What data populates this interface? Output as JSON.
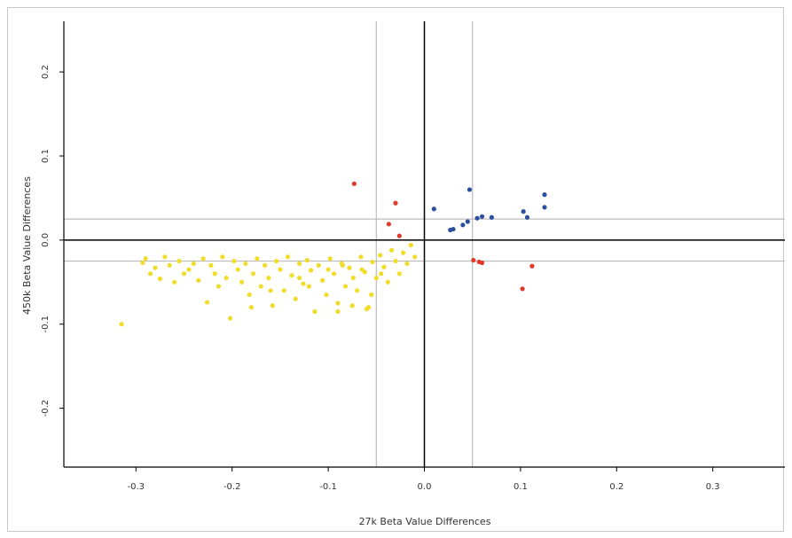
{
  "chart_data": {
    "type": "scatter",
    "title": "",
    "xlabel": "27k Beta Value Differences",
    "ylabel": "450k Beta Value Differences",
    "xlim": [
      -0.375,
      0.375
    ],
    "ylim": [
      -0.27,
      0.275
    ],
    "xticks": [
      -0.3,
      -0.2,
      -0.1,
      0.0,
      0.1,
      0.2,
      0.3
    ],
    "yticks": [
      -0.2,
      -0.1,
      0.0,
      0.1,
      0.2
    ],
    "xtick_labels": [
      "-0.3",
      "-0.2",
      "-0.1",
      "0.0",
      "0.1",
      "0.2",
      "0.3"
    ],
    "ytick_labels": [
      "-0.2",
      "-0.1",
      "0.0",
      "0.1",
      "0.2"
    ],
    "zero_lines": {
      "x": 0.0,
      "y": 0.0,
      "color": "#000000"
    },
    "threshold_lines": {
      "x": [
        -0.05,
        0.05
      ],
      "y": [
        -0.025,
        0.025
      ],
      "color": "#bbbbbb"
    },
    "legend": "none",
    "grid": false,
    "series": [
      {
        "color": "#2b4f9e",
        "points": [
          [
            0.01,
            0.037
          ],
          [
            0.047,
            0.06
          ],
          [
            0.027,
            0.012
          ],
          [
            0.03,
            0.013
          ],
          [
            0.04,
            0.018
          ],
          [
            0.045,
            0.022
          ],
          [
            0.055,
            0.026
          ],
          [
            0.06,
            0.028
          ],
          [
            0.07,
            0.027
          ],
          [
            0.103,
            0.034
          ],
          [
            0.107,
            0.027
          ],
          [
            0.125,
            0.054
          ],
          [
            0.125,
            0.039
          ]
        ]
      },
      {
        "color": "#e03a2a",
        "points": [
          [
            -0.073,
            0.067
          ],
          [
            -0.03,
            0.044
          ],
          [
            -0.037,
            0.019
          ],
          [
            -0.026,
            0.005
          ],
          [
            0.051,
            -0.024
          ],
          [
            0.057,
            -0.026
          ],
          [
            0.06,
            -0.027
          ],
          [
            0.112,
            -0.031
          ],
          [
            0.102,
            -0.058
          ]
        ]
      },
      {
        "color": "#f2dc2a",
        "points": [
          [
            -0.315,
            -0.1
          ],
          [
            -0.293,
            -0.027
          ],
          [
            -0.29,
            -0.022
          ],
          [
            -0.285,
            -0.04
          ],
          [
            -0.28,
            -0.033
          ],
          [
            -0.275,
            -0.046
          ],
          [
            -0.27,
            -0.02
          ],
          [
            -0.265,
            -0.03
          ],
          [
            -0.26,
            -0.05
          ],
          [
            -0.255,
            -0.025
          ],
          [
            -0.25,
            -0.04
          ],
          [
            -0.245,
            -0.035
          ],
          [
            -0.24,
            -0.028
          ],
          [
            -0.235,
            -0.048
          ],
          [
            -0.23,
            -0.022
          ],
          [
            -0.226,
            -0.074
          ],
          [
            -0.222,
            -0.03
          ],
          [
            -0.218,
            -0.04
          ],
          [
            -0.214,
            -0.055
          ],
          [
            -0.21,
            -0.02
          ],
          [
            -0.206,
            -0.045
          ],
          [
            -0.202,
            -0.093
          ],
          [
            -0.198,
            -0.025
          ],
          [
            -0.194,
            -0.035
          ],
          [
            -0.19,
            -0.05
          ],
          [
            -0.186,
            -0.028
          ],
          [
            -0.182,
            -0.065
          ],
          [
            -0.178,
            -0.04
          ],
          [
            -0.174,
            -0.022
          ],
          [
            -0.17,
            -0.055
          ],
          [
            -0.166,
            -0.03
          ],
          [
            -0.162,
            -0.045
          ],
          [
            -0.158,
            -0.078
          ],
          [
            -0.154,
            -0.025
          ],
          [
            -0.15,
            -0.035
          ],
          [
            -0.146,
            -0.06
          ],
          [
            -0.142,
            -0.02
          ],
          [
            -0.138,
            -0.042
          ],
          [
            -0.134,
            -0.07
          ],
          [
            -0.13,
            -0.028
          ],
          [
            -0.126,
            -0.052
          ],
          [
            -0.122,
            -0.024
          ],
          [
            -0.118,
            -0.036
          ],
          [
            -0.114,
            -0.085
          ],
          [
            -0.11,
            -0.03
          ],
          [
            -0.106,
            -0.048
          ],
          [
            -0.102,
            -0.065
          ],
          [
            -0.098,
            -0.022
          ],
          [
            -0.094,
            -0.04
          ],
          [
            -0.09,
            -0.075
          ],
          [
            -0.086,
            -0.028
          ],
          [
            -0.082,
            -0.055
          ],
          [
            -0.078,
            -0.033
          ],
          [
            -0.074,
            -0.045
          ],
          [
            -0.07,
            -0.06
          ],
          [
            -0.066,
            -0.02
          ],
          [
            -0.062,
            -0.038
          ],
          [
            -0.058,
            -0.08
          ],
          [
            -0.054,
            -0.026
          ],
          [
            -0.05,
            -0.045
          ],
          [
            -0.046,
            -0.018
          ],
          [
            -0.042,
            -0.032
          ],
          [
            -0.038,
            -0.05
          ],
          [
            -0.034,
            -0.012
          ],
          [
            -0.03,
            -0.025
          ],
          [
            -0.026,
            -0.04
          ],
          [
            -0.022,
            -0.015
          ],
          [
            -0.018,
            -0.028
          ],
          [
            -0.014,
            -0.006
          ],
          [
            -0.01,
            -0.02
          ],
          [
            -0.06,
            -0.082
          ],
          [
            -0.09,
            -0.085
          ],
          [
            -0.16,
            -0.06
          ],
          [
            -0.12,
            -0.055
          ],
          [
            -0.075,
            -0.078
          ],
          [
            -0.18,
            -0.08
          ],
          [
            -0.055,
            -0.065
          ],
          [
            -0.13,
            -0.045
          ],
          [
            -0.1,
            -0.035
          ],
          [
            -0.085,
            -0.03
          ],
          [
            -0.065,
            -0.035
          ],
          [
            -0.045,
            -0.04
          ]
        ]
      }
    ]
  }
}
